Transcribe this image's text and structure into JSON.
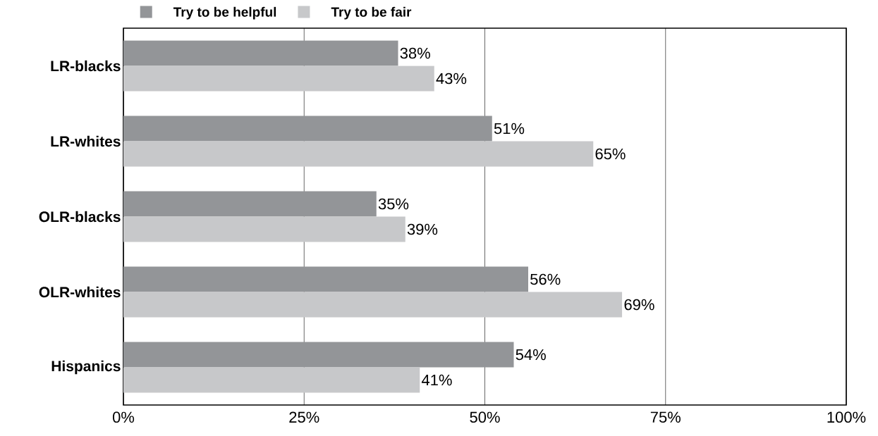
{
  "chart_data": {
    "type": "bar",
    "orientation": "horizontal",
    "categories": [
      "LR-blacks",
      "LR-whites",
      "OLR-blacks",
      "OLR-whites",
      "Hispanics"
    ],
    "series": [
      {
        "name": "Try to be helpful",
        "color": "#939598",
        "values": [
          38,
          51,
          35,
          56,
          54
        ],
        "value_labels": [
          "38%",
          "51%",
          "35%",
          "56%",
          "54%"
        ]
      },
      {
        "name": "Try to be fair",
        "color": "#c7c8ca",
        "values": [
          43,
          65,
          39,
          69,
          41
        ],
        "value_labels": [
          "43%",
          "65%",
          "39%",
          "69%",
          "41%"
        ]
      }
    ],
    "xlim": [
      0,
      100
    ],
    "xticks": [
      {
        "value": 0,
        "label": "0%"
      },
      {
        "value": 25,
        "label": "25%"
      },
      {
        "value": 50,
        "label": "50%"
      },
      {
        "value": 75,
        "label": "75%"
      },
      {
        "value": 100,
        "label": "100%"
      }
    ],
    "grid": "x",
    "legend": "top left"
  }
}
